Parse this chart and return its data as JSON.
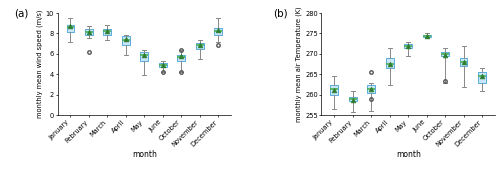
{
  "months": [
    "January",
    "February",
    "March",
    "April",
    "May",
    "June",
    "October",
    "November",
    "December"
  ],
  "wind": {
    "whislo": [
      7.2,
      7.6,
      7.4,
      5.9,
      3.9,
      4.2,
      4.2,
      5.5,
      7.2
    ],
    "q1": [
      8.1,
      7.9,
      7.9,
      6.9,
      5.3,
      4.7,
      5.3,
      6.5,
      7.9
    ],
    "med": [
      8.6,
      8.1,
      8.2,
      7.4,
      5.9,
      4.9,
      5.7,
      6.9,
      8.2
    ],
    "mean": [
      8.7,
      8.1,
      8.2,
      7.5,
      5.9,
      4.9,
      5.8,
      6.9,
      8.3
    ],
    "q3": [
      8.8,
      8.4,
      8.4,
      7.8,
      6.2,
      5.1,
      5.9,
      7.1,
      8.5
    ],
    "whishi": [
      9.5,
      8.7,
      8.8,
      7.9,
      6.4,
      5.3,
      6.4,
      7.4,
      9.5
    ],
    "fliers": [
      [],
      [
        6.2
      ],
      [],
      [],
      [],
      [
        4.2
      ],
      [
        4.2,
        6.4
      ],
      [],
      [
        6.9
      ]
    ]
  },
  "temp": {
    "whislo": [
      256.5,
      255.8,
      256.0,
      262.5,
      269.5,
      274.0,
      263.0,
      262.0,
      261.0
    ],
    "q1": [
      260.0,
      258.5,
      260.5,
      266.5,
      271.5,
      274.2,
      269.5,
      267.0,
      263.0
    ],
    "med": [
      261.5,
      259.0,
      261.5,
      267.5,
      272.0,
      274.5,
      270.0,
      268.0,
      264.5
    ],
    "mean": [
      261.2,
      258.8,
      261.5,
      267.5,
      272.0,
      274.5,
      269.8,
      268.0,
      264.5
    ],
    "q3": [
      262.5,
      259.5,
      262.5,
      269.0,
      272.5,
      274.7,
      270.5,
      269.0,
      265.5
    ],
    "whishi": [
      264.5,
      261.0,
      263.0,
      271.5,
      272.8,
      275.0,
      271.5,
      272.0,
      266.5
    ],
    "fliers": [
      [],
      [],
      [
        265.5,
        259.0
      ],
      [],
      [],
      [],
      [
        263.5
      ],
      [],
      []
    ]
  },
  "box_facecolor": "#c8e6fa",
  "box_edgecolor": "#5aacdc",
  "median_color": "#4caf50",
  "mean_color": "#2e7d32",
  "whisker_color": "#888888",
  "cap_color": "#888888",
  "flier_color": "#555555",
  "wind_ylim": [
    0,
    10
  ],
  "wind_yticks": [
    0,
    2,
    4,
    6,
    8,
    10
  ],
  "temp_ylim": [
    255,
    280
  ],
  "temp_yticks": [
    255,
    260,
    265,
    270,
    275,
    280
  ],
  "xlabel": "month",
  "wind_ylabel": "monthly mean wind speed (m/s)",
  "temp_ylabel": "monthly mean air Temperature (K)",
  "label_a": "(a)",
  "label_b": "(b)"
}
